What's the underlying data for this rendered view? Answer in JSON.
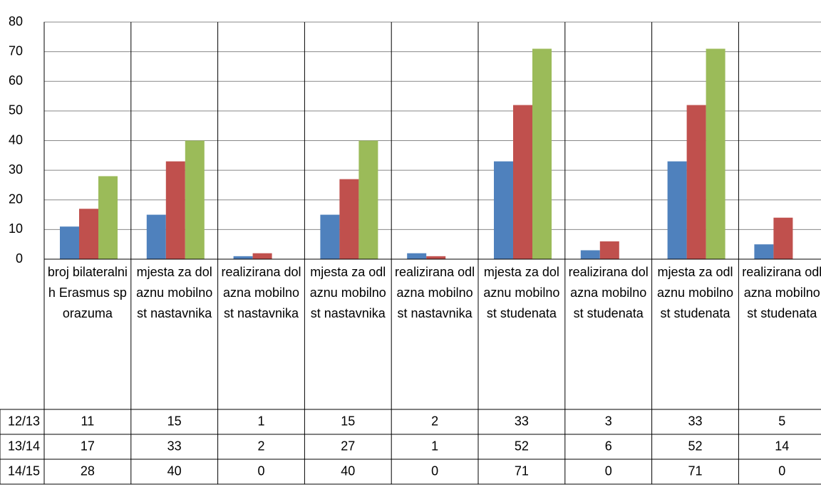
{
  "chart_data": {
    "type": "bar",
    "categories": [
      "broj bilateralnih Erasmus sporazuma",
      "mjesta za dolaznu mobilnost nastavnika",
      "realizirana dolazna mobilnost nastavnika",
      "mjesta za odlaznu mobilnost nastavnika",
      "realizirana odlazna mobilnost nastavnika",
      "mjesta za dolaznu mobilnost studenata",
      "realizirana dolazna mobilnost studenata",
      "mjesta za odlaznu mobilnost studenata",
      "realizirana odlazna mobilnost studenata"
    ],
    "series": [
      {
        "name": "12/13",
        "color": "#4f81bd",
        "values": [
          11,
          15,
          1,
          15,
          2,
          33,
          3,
          33,
          5
        ]
      },
      {
        "name": "13/14",
        "color": "#c0504d",
        "values": [
          17,
          33,
          2,
          27,
          1,
          52,
          6,
          52,
          14
        ]
      },
      {
        "name": "14/15",
        "color": "#9bbb59",
        "values": [
          28,
          40,
          0,
          40,
          0,
          71,
          0,
          71,
          0
        ]
      }
    ],
    "ylim": [
      0,
      80
    ],
    "yticks": [
      0,
      10,
      20,
      30,
      40,
      50,
      60,
      70,
      80
    ],
    "grid": true
  }
}
